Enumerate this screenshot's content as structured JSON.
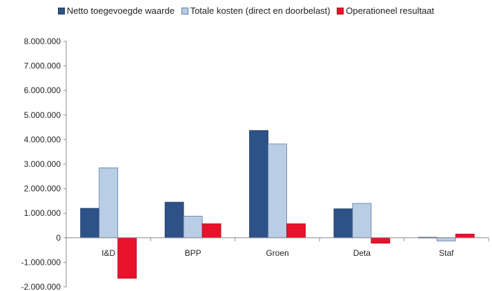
{
  "chart_data": {
    "type": "bar",
    "title": "",
    "xlabel": "",
    "ylabel": "",
    "categories": [
      "I&D",
      "BPP",
      "Groen",
      "Deta",
      "Staf"
    ],
    "series": [
      {
        "name": "Netto toegevoegde waarde",
        "color": "#2e5288",
        "values": [
          1200000,
          1450000,
          4370000,
          1180000,
          20000
        ]
      },
      {
        "name": "Totale kosten (direct en doorbelast)",
        "color": "#b9cde5",
        "values": [
          2850000,
          880000,
          3820000,
          1400000,
          -130000
        ]
      },
      {
        "name": "Operationeel resultaat",
        "color": "#e8132a",
        "values": [
          -1650000,
          570000,
          570000,
          -220000,
          150000
        ]
      }
    ],
    "ylim": [
      -2000000,
      8000000
    ],
    "yticks": [
      8000000,
      7000000,
      6000000,
      5000000,
      4000000,
      3000000,
      2000000,
      1000000,
      0,
      -1000000,
      -2000000
    ],
    "ytick_labels": [
      "8.000.000",
      "7.000.000",
      "6.000.000",
      "5.000.000",
      "4.000.000",
      "3.000.000",
      "2.000.000",
      "1.000.000",
      "0",
      "-1.000.000",
      "-2.000.000"
    ],
    "grid": false,
    "legend_position": "top"
  }
}
